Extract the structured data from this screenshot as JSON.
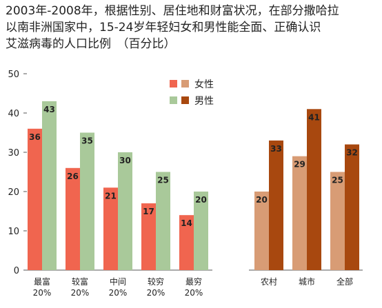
{
  "title": {
    "lines": [
      "2003年-2008年，根据性别、居住地和财富状况，在部分撒哈拉",
      "以南非洲国家中，15-24岁年轻妇女和男性能全面、正确认识",
      "艾滋病毒的人口比例　（百分比）"
    ]
  },
  "legend": {
    "female": "女性",
    "male": "男性"
  },
  "colors": {
    "wealth_female": "#f0654f",
    "wealth_male": "#a9c99a",
    "residence_female": "#d89c75",
    "residence_male": "#a8480f"
  },
  "chart_data": {
    "type": "bar",
    "ylim": [
      0,
      50
    ],
    "yticks": [
      "0",
      "10",
      "20",
      "30",
      "40",
      "50"
    ],
    "groups": [
      {
        "name": "wealth",
        "categories": [
          [
            "最富",
            "20%"
          ],
          [
            "较富",
            "20%"
          ],
          [
            "中间",
            "20%"
          ],
          [
            "较穷",
            "20%"
          ],
          [
            "最穷",
            "20%"
          ]
        ]
      },
      {
        "name": "residence",
        "categories": [
          [
            "农村"
          ],
          [
            "城市"
          ],
          [
            "全部"
          ]
        ]
      }
    ],
    "series": [
      {
        "name": "女性",
        "wealth": [
          36,
          26,
          21,
          17,
          14
        ],
        "residence": [
          20,
          29,
          25
        ]
      },
      {
        "name": "男性",
        "wealth": [
          43,
          35,
          30,
          25,
          20
        ],
        "residence": [
          33,
          41,
          32
        ]
      }
    ]
  }
}
